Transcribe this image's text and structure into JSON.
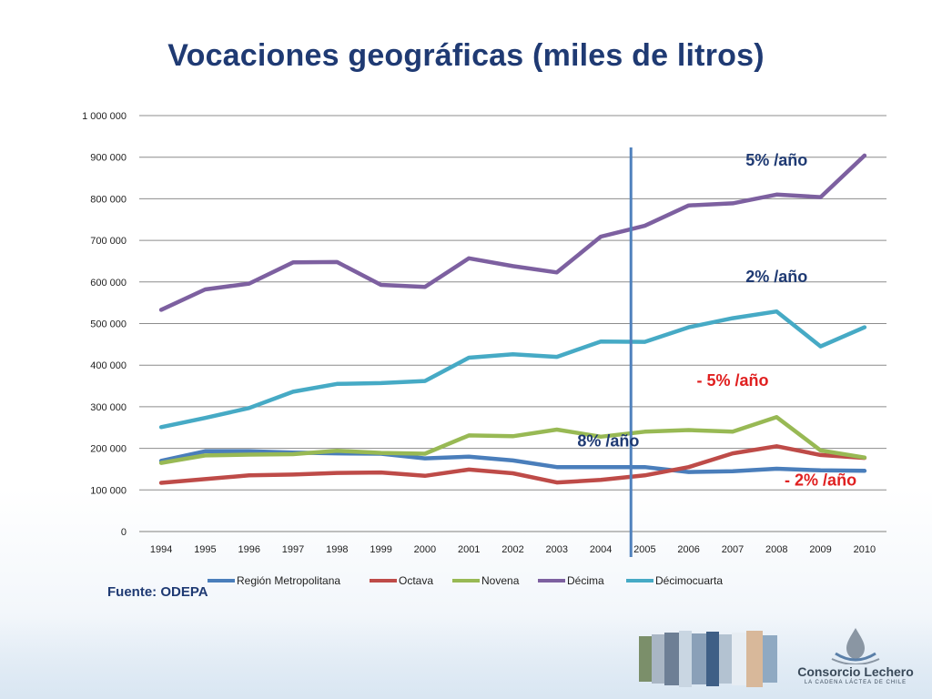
{
  "slide": {
    "title": "Vocaciones geográficas (miles de litros)",
    "source": "Fuente: ODEPA"
  },
  "chart_data": {
    "type": "line",
    "title": "",
    "xlabel": "",
    "ylabel": "",
    "x": [
      "1994",
      "1995",
      "1996",
      "1997",
      "1998",
      "1999",
      "2000",
      "2001",
      "2002",
      "2003",
      "2004",
      "2005",
      "2006",
      "2007",
      "2008",
      "2009",
      "2010"
    ],
    "ylim": [
      0,
      1000000
    ],
    "yticks": [
      0,
      100000,
      200000,
      300000,
      400000,
      500000,
      600000,
      700000,
      800000,
      900000,
      1000000
    ],
    "ytick_labels": [
      "0",
      "100 000",
      "200 000",
      "300 000",
      "400 000",
      "500 000",
      "600 000",
      "700 000",
      "800 000",
      "900 000",
      "1 000 000"
    ],
    "grid": true,
    "legend_position": "bottom",
    "series": [
      {
        "name": "Región Metropolitana",
        "color": "#4a7ebb",
        "values": [
          170000,
          193000,
          193000,
          190000,
          188000,
          187000,
          176000,
          180000,
          171000,
          155000,
          155000,
          155000,
          143000,
          145000,
          151000,
          147000,
          146000
        ]
      },
      {
        "name": "Octava",
        "color": "#be4b48",
        "values": [
          117000,
          126000,
          135000,
          137000,
          141000,
          142000,
          134000,
          149000,
          140000,
          118000,
          124000,
          135000,
          155000,
          188000,
          205000,
          184000,
          177000
        ]
      },
      {
        "name": "Novena",
        "color": "#98b954",
        "values": [
          165000,
          183000,
          185000,
          186000,
          194000,
          189000,
          187000,
          231000,
          229000,
          245000,
          228000,
          240000,
          244000,
          240000,
          275000,
          195000,
          178000
        ]
      },
      {
        "name": "Décima",
        "color": "#7d60a0",
        "values": [
          533000,
          582000,
          596000,
          647000,
          648000,
          593000,
          588000,
          657000,
          638000,
          623000,
          709000,
          735000,
          784000,
          789000,
          810000,
          804000,
          904000
        ]
      },
      {
        "name": "Décimocuarta",
        "color": "#46aac5",
        "values": [
          251000,
          273000,
          297000,
          336000,
          355000,
          357000,
          362000,
          418000,
          426000,
          420000,
          457000,
          456000,
          491000,
          513000,
          529000,
          445000,
          491000
        ]
      }
    ],
    "vertical_marker": {
      "x": "2005",
      "color": "#4f81bd"
    },
    "annotations": [
      {
        "text": "5% /año",
        "color": "#1f3a73",
        "x": "2008",
        "y": 880000
      },
      {
        "text": "2%  /año",
        "color": "#1f3a73",
        "x": "2008",
        "y": 600000
      },
      {
        "text": "- 5% /año",
        "color": "#e02020",
        "x": "2007",
        "y": 350000
      },
      {
        "text": "8% /año",
        "color": "#1f3a73",
        "x": "2005",
        "y": 205000
      },
      {
        "text": "- 2% /año",
        "color": "#e02020",
        "x": "2009",
        "y": 110000
      }
    ]
  },
  "footer": {
    "logo_name": "Consorcio Lechero",
    "logo_tagline": "LA CADENA LÁCTEA DE CHILE"
  }
}
